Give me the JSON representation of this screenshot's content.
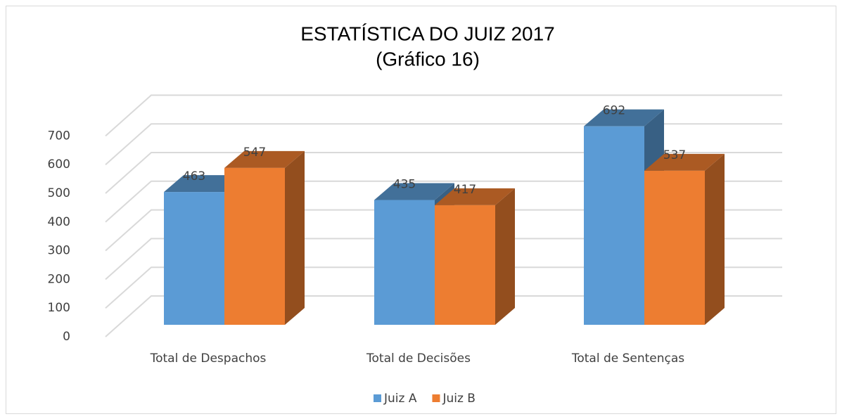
{
  "chart_data": {
    "type": "bar3d",
    "title": "ESTATÍSTICA DO JUIZ  2017",
    "subtitle": "(Gráfico 16)",
    "categories": [
      "Total de Despachos",
      "Total de Decisões",
      "Total de Sentenças"
    ],
    "series": [
      {
        "name": "Juiz A",
        "color": "#5b9bd5",
        "values": [
          463,
          435,
          692
        ]
      },
      {
        "name": "Juiz B",
        "color": "#ed7d31",
        "values": [
          547,
          417,
          537
        ]
      }
    ],
    "ylim": [
      0,
      700
    ],
    "yticks": [
      0,
      100,
      200,
      300,
      400,
      500,
      600,
      700
    ],
    "grid": true,
    "legend": "bottom"
  }
}
